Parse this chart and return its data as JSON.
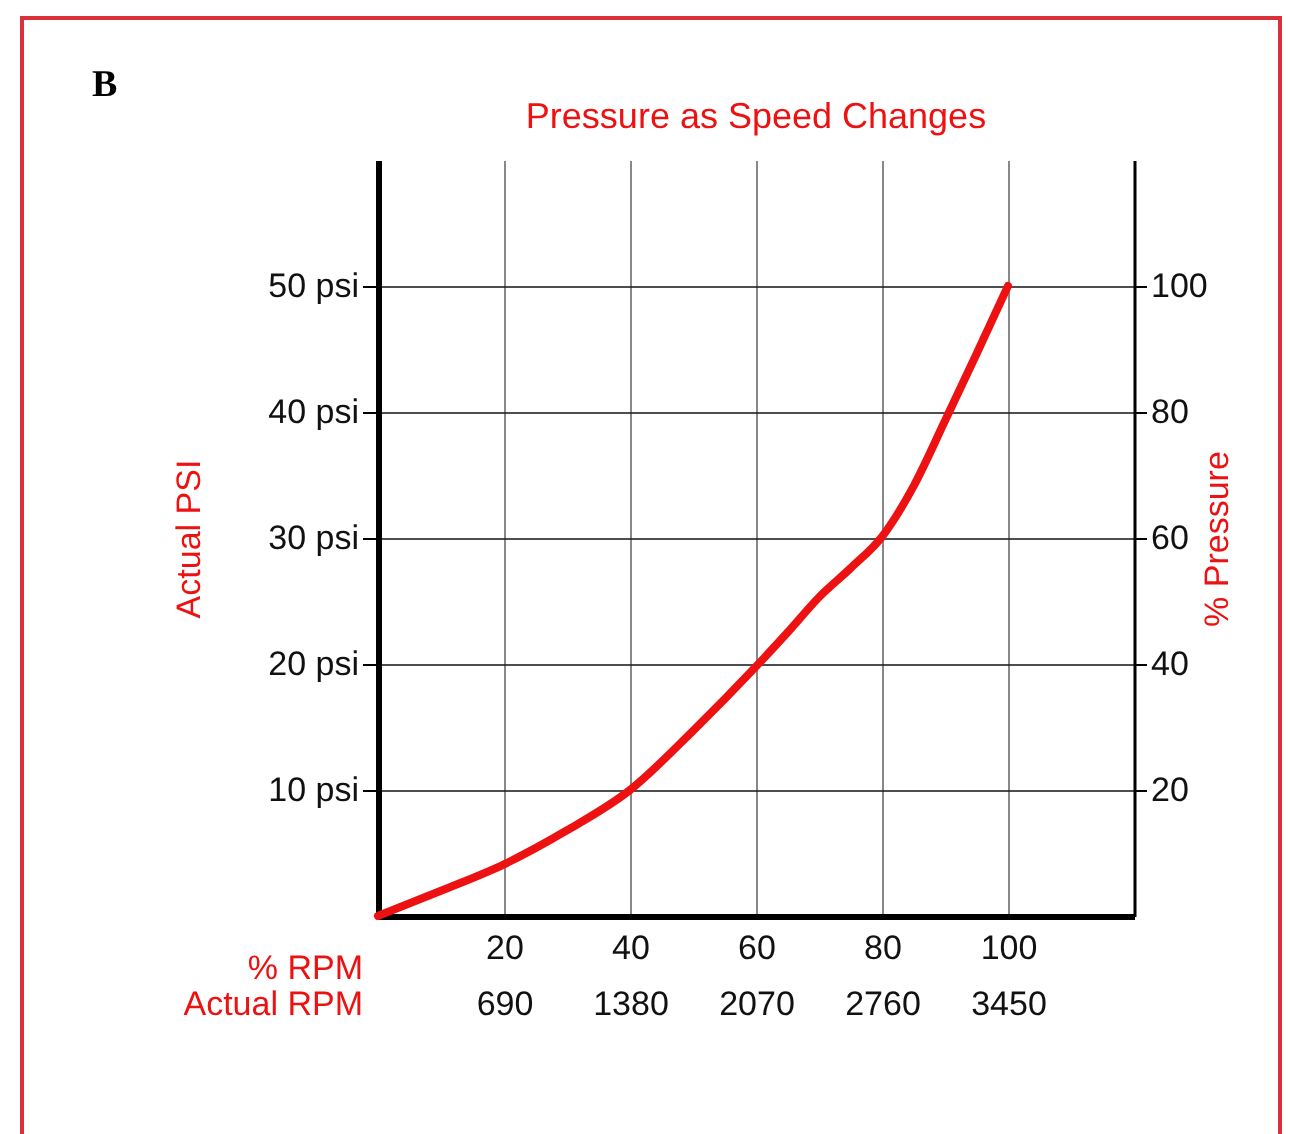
{
  "chart_data": {
    "type": "line",
    "title": "Pressure as Speed Changes",
    "xlabel": "% RPM",
    "x2label": "Actual RPM",
    "ylabel": "Actual PSI",
    "y2label": "% Pressure",
    "annotations": [
      "B"
    ],
    "x": [
      0,
      10,
      20,
      30,
      40,
      50,
      60,
      65,
      70,
      75,
      80,
      85,
      90,
      95,
      100
    ],
    "series": [
      {
        "color": "#ee1111",
        "values": [
          0,
          2,
          4.1,
          6.8,
          10,
          14.7,
          19.8,
          22.5,
          25.3,
          27.6,
          30.1,
          34.1,
          39.3,
          44.6,
          50
        ]
      }
    ],
    "xlim": [
      0,
      120
    ],
    "xticks": [
      20,
      40,
      60,
      80,
      100
    ],
    "x2lim": [
      0,
      4140
    ],
    "x2ticks": [
      690,
      1380,
      2070,
      2760,
      3450
    ],
    "ylim": [
      0,
      60
    ],
    "yticks": [
      {
        "value": 10,
        "label": "10 psi"
      },
      {
        "value": 20,
        "label": "20 psi"
      },
      {
        "value": 30,
        "label": "30 psi"
      },
      {
        "value": 40,
        "label": "40 psi"
      },
      {
        "value": 50,
        "label": "50 psi"
      }
    ],
    "y2lim": [
      0,
      120
    ],
    "y2ticks": [
      20,
      40,
      60,
      80,
      100
    ],
    "grid": true,
    "marker": "none",
    "line_style": "solid"
  }
}
